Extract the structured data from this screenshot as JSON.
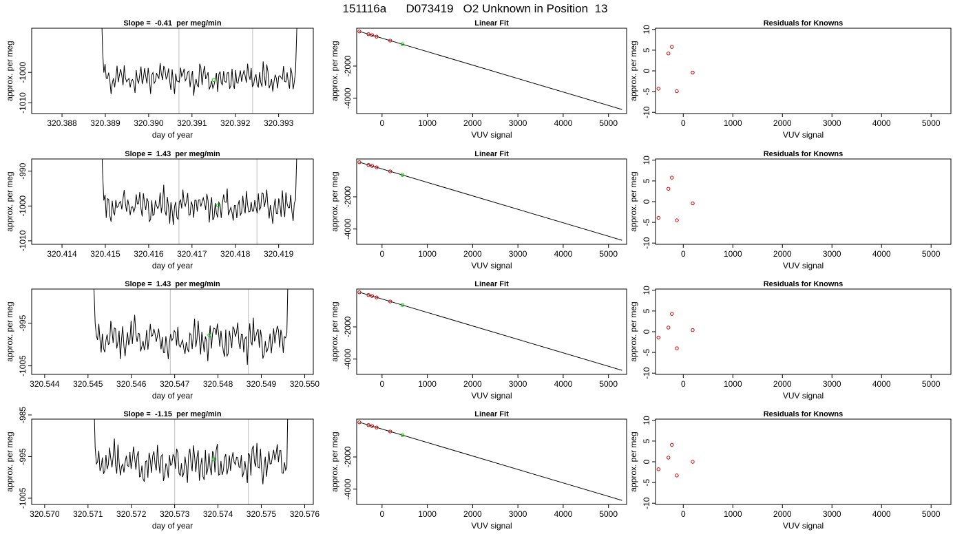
{
  "figure": {
    "title": "151116a      D073419   O2 Unknown in Position  13"
  },
  "colors": {
    "trace": "#000000",
    "marker_vline": "#c8c8c8",
    "unknown_point": "#00cc00",
    "known_point": "#cc0000",
    "fit_line": "#000000"
  },
  "chart_data": [
    {
      "type": "line",
      "panel": "trace",
      "row": 1,
      "title": "Slope =  -0.41  per meg/min",
      "xlabel": "day of year",
      "ylabel": "approx. per meg",
      "xlim": [
        320.3873,
        320.3938
      ],
      "ylim": [
        -1013.5,
        -985.5
      ],
      "xticks": [
        320.388,
        320.389,
        320.39,
        320.391,
        320.392,
        320.393
      ],
      "xtick_labels": [
        "320.388",
        "320.389",
        "320.390",
        "320.391",
        "320.392",
        "320.393"
      ],
      "yticks": [
        -1010,
        -1000
      ],
      "ytick_labels": [
        "-1010",
        "-1000"
      ],
      "vlines": [
        320.3907,
        320.3924
      ],
      "trace_start": 320.3888,
      "trace_end": 320.3935,
      "trace_level": -1002,
      "unknown_point": {
        "x": 320.3915,
        "y": -1002.5
      }
    },
    {
      "type": "scatter",
      "panel": "fit",
      "row": 1,
      "title": "Linear Fit",
      "xlabel": "VUV signal",
      "ylabel": "approx. per meg",
      "xlim": [
        -560,
        5400
      ],
      "ylim": [
        -4950,
        350
      ],
      "xticks": [
        0,
        1000,
        2000,
        3000,
        4000,
        5000
      ],
      "xtick_labels": [
        "0",
        "1000",
        "2000",
        "3000",
        "4000",
        "5000"
      ],
      "yticks": [
        -2000,
        -4000
      ],
      "ytick_labels": [
        "-2000",
        "-4000"
      ],
      "fit_line": {
        "x": [
          -500,
          5300
        ],
        "y": [
          150,
          -4700
        ]
      },
      "knowns": {
        "x": [
          -500,
          -300,
          -220,
          -120,
          180
        ],
        "y": [
          150,
          -20,
          -80,
          -170,
          -420
        ]
      },
      "unknown": {
        "x": 450,
        "y": -640
      }
    },
    {
      "type": "scatter",
      "panel": "residuals",
      "row": 1,
      "title": "Residuals for Knowns",
      "xlabel": "VUV signal",
      "ylabel": "approx. per meg",
      "xlim": [
        -560,
        5400
      ],
      "ylim": [
        -10.3,
        10.3
      ],
      "xticks": [
        0,
        1000,
        2000,
        3000,
        4000,
        5000
      ],
      "xtick_labels": [
        "0",
        "1000",
        "2000",
        "3000",
        "4000",
        "5000"
      ],
      "yticks": [
        10,
        5,
        0,
        -5,
        -10
      ],
      "ytick_labels": [
        "10",
        "5",
        "0",
        "-5",
        "-10"
      ],
      "x": [
        -500,
        -300,
        -230,
        -130,
        190
      ],
      "y": [
        -4.3,
        4.2,
        5.8,
        -4.9,
        -0.4
      ]
    },
    {
      "type": "line",
      "panel": "trace",
      "row": 2,
      "title": "Slope =  1.43  per meg/min",
      "xlabel": "day of year",
      "ylabel": "approx. per meg",
      "xlim": [
        320.4133,
        320.4198
      ],
      "ylim": [
        -1011,
        -986.5
      ],
      "xticks": [
        320.414,
        320.415,
        320.416,
        320.417,
        320.418,
        320.419
      ],
      "xtick_labels": [
        "320.414",
        "320.415",
        "320.416",
        "320.417",
        "320.418",
        "320.419"
      ],
      "yticks": [
        -1010,
        -1000,
        -990
      ],
      "ytick_labels": [
        "-1010",
        "-1000",
        "-990"
      ],
      "vlines": [
        320.4167,
        320.4185
      ],
      "trace_start": 320.4148,
      "trace_end": 320.4195,
      "trace_level": -1000,
      "unknown_point": {
        "x": 320.4176,
        "y": -999.8
      }
    },
    {
      "type": "scatter",
      "panel": "fit",
      "row": 2,
      "title": "Linear Fit",
      "xlabel": "VUV signal",
      "ylabel": "approx. per meg",
      "xlim": [
        -560,
        5400
      ],
      "ylim": [
        -4950,
        350
      ],
      "xticks": [
        0,
        1000,
        2000,
        3000,
        4000,
        5000
      ],
      "xtick_labels": [
        "0",
        "1000",
        "2000",
        "3000",
        "4000",
        "5000"
      ],
      "yticks": [
        -2000,
        -4000
      ],
      "ytick_labels": [
        "-2000",
        "-4000"
      ],
      "fit_line": {
        "x": [
          -500,
          5300
        ],
        "y": [
          150,
          -4700
        ]
      },
      "knowns": {
        "x": [
          -500,
          -300,
          -220,
          -120,
          180
        ],
        "y": [
          150,
          -20,
          -80,
          -170,
          -420
        ]
      },
      "unknown": {
        "x": 450,
        "y": -640
      }
    },
    {
      "type": "scatter",
      "panel": "residuals",
      "row": 2,
      "title": "Residuals for Knowns",
      "xlabel": "VUV signal",
      "ylabel": "approx. per meg",
      "xlim": [
        -560,
        5400
      ],
      "ylim": [
        -10.3,
        10.3
      ],
      "xticks": [
        0,
        1000,
        2000,
        3000,
        4000,
        5000
      ],
      "xtick_labels": [
        "0",
        "1000",
        "2000",
        "3000",
        "4000",
        "5000"
      ],
      "yticks": [
        10,
        5,
        0,
        -5,
        -10
      ],
      "ytick_labels": [
        "10",
        "5",
        "0",
        "-5",
        "-10"
      ],
      "x": [
        -500,
        -300,
        -230,
        -130,
        190
      ],
      "y": [
        -3.9,
        3.1,
        5.8,
        -4.5,
        -0.4
      ]
    },
    {
      "type": "line",
      "panel": "trace",
      "row": 3,
      "title": "Slope =  1.43  per meg/min",
      "xlabel": "day of year",
      "ylabel": "approx. per meg",
      "xlim": [
        320.5437,
        320.5502
      ],
      "ylim": [
        -1007,
        -987
      ],
      "xticks": [
        320.544,
        320.545,
        320.546,
        320.547,
        320.548,
        320.549,
        320.55
      ],
      "xtick_labels": [
        "320.544",
        "320.545",
        "320.546",
        "320.547",
        "320.548",
        "320.549",
        "320.550"
      ],
      "yticks": [
        -1005,
        -995
      ],
      "ytick_labels": [
        "-1005",
        "-995"
      ],
      "vlines": [
        320.5469,
        320.5487
      ],
      "trace_start": 320.545,
      "trace_end": 320.5497,
      "trace_level": -998.8,
      "unknown_point": {
        "x": 320.5478,
        "y": -997.8
      }
    },
    {
      "type": "scatter",
      "panel": "fit",
      "row": 3,
      "title": "Linear Fit",
      "xlabel": "VUV signal",
      "ylabel": "approx. per meg",
      "xlim": [
        -560,
        5400
      ],
      "ylim": [
        -4950,
        350
      ],
      "xticks": [
        0,
        1000,
        2000,
        3000,
        4000,
        5000
      ],
      "xtick_labels": [
        "0",
        "1000",
        "2000",
        "3000",
        "4000",
        "5000"
      ],
      "yticks": [
        -2000,
        -4000
      ],
      "ytick_labels": [
        "-2000",
        "-4000"
      ],
      "fit_line": {
        "x": [
          -500,
          5300
        ],
        "y": [
          150,
          -4700
        ]
      },
      "knowns": {
        "x": [
          -500,
          -300,
          -220,
          -120,
          180
        ],
        "y": [
          150,
          -20,
          -80,
          -170,
          -420
        ]
      },
      "unknown": {
        "x": 450,
        "y": -640
      }
    },
    {
      "type": "scatter",
      "panel": "residuals",
      "row": 3,
      "title": "Residuals for Knowns",
      "xlabel": "VUV signal",
      "ylabel": "approx. per meg",
      "xlim": [
        -560,
        5400
      ],
      "ylim": [
        -10.3,
        10.3
      ],
      "xticks": [
        0,
        1000,
        2000,
        3000,
        4000,
        5000
      ],
      "xtick_labels": [
        "0",
        "1000",
        "2000",
        "3000",
        "4000",
        "5000"
      ],
      "yticks": [
        10,
        5,
        0,
        -5,
        -10
      ],
      "ytick_labels": [
        "10",
        "5",
        "0",
        "-5",
        "-10"
      ],
      "x": [
        -500,
        -300,
        -230,
        -130,
        190
      ],
      "y": [
        -1.4,
        1.0,
        4.3,
        -4.0,
        0.4
      ]
    },
    {
      "type": "line",
      "panel": "trace",
      "row": 4,
      "title": "Slope =  -1.15  per meg/min",
      "xlabel": "day of year",
      "ylabel": "approx. per meg",
      "xlim": [
        320.5697,
        320.5762
      ],
      "ylim": [
        -1006.5,
        -986
      ],
      "xticks": [
        320.57,
        320.571,
        320.572,
        320.573,
        320.574,
        320.575,
        320.576
      ],
      "xtick_labels": [
        "320.570",
        "320.571",
        "320.572",
        "320.573",
        "320.574",
        "320.575",
        "320.576"
      ],
      "yticks": [
        -1005,
        -995,
        -985
      ],
      "ytick_labels": [
        "-1005",
        "-995",
        "-985"
      ],
      "vlines": [
        320.573,
        320.5747
      ],
      "trace_start": 320.571,
      "trace_end": 320.5757,
      "trace_level": -996.5,
      "unknown_point": {
        "x": 320.5739,
        "y": -995.6
      }
    },
    {
      "type": "scatter",
      "panel": "fit",
      "row": 4,
      "title": "Linear Fit",
      "xlabel": "VUV signal",
      "ylabel": "approx. per meg",
      "xlim": [
        -560,
        5400
      ],
      "ylim": [
        -4950,
        350
      ],
      "xticks": [
        0,
        1000,
        2000,
        3000,
        4000,
        5000
      ],
      "xtick_labels": [
        "0",
        "1000",
        "2000",
        "3000",
        "4000",
        "5000"
      ],
      "yticks": [
        -2000,
        -4000
      ],
      "ytick_labels": [
        "-2000",
        "-4000"
      ],
      "fit_line": {
        "x": [
          -500,
          5300
        ],
        "y": [
          150,
          -4700
        ]
      },
      "knowns": {
        "x": [
          -500,
          -300,
          -220,
          -120,
          180
        ],
        "y": [
          150,
          -20,
          -80,
          -170,
          -420
        ]
      },
      "unknown": {
        "x": 450,
        "y": -640
      }
    },
    {
      "type": "scatter",
      "panel": "residuals",
      "row": 4,
      "title": "Residuals for Knowns",
      "xlabel": "VUV signal",
      "ylabel": "approx. per meg",
      "xlim": [
        -560,
        5400
      ],
      "ylim": [
        -10.3,
        10.3
      ],
      "xticks": [
        0,
        1000,
        2000,
        3000,
        4000,
        5000
      ],
      "xtick_labels": [
        "0",
        "1000",
        "2000",
        "3000",
        "4000",
        "5000"
      ],
      "yticks": [
        10,
        5,
        0,
        -5,
        -10
      ],
      "ytick_labels": [
        "10",
        "5",
        "0",
        "-5",
        "-10"
      ],
      "x": [
        -500,
        -300,
        -230,
        -130,
        190
      ],
      "y": [
        -1.8,
        1.0,
        4.1,
        -3.3,
        0.0
      ]
    }
  ]
}
